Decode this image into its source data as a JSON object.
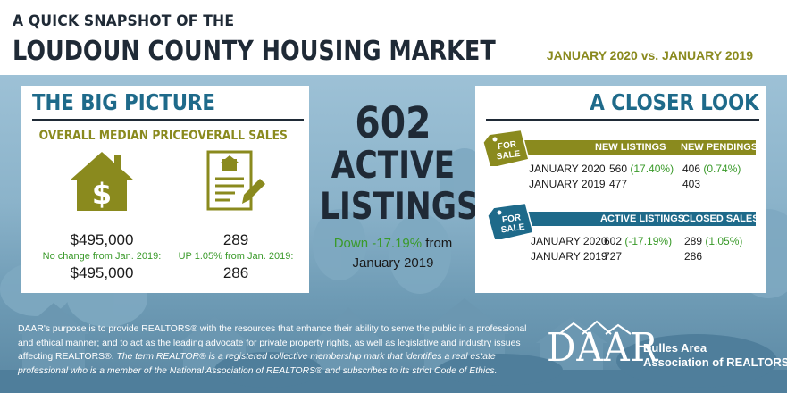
{
  "header": {
    "title_line1": "A QUICK SNAPSHOT OF THE",
    "title_line2": "LOUDOUN COUNTY HOUSING MARKET",
    "date_range": "JANUARY  2020 vs. JANUARY  2019"
  },
  "big_picture": {
    "title": "THE BIG PICTURE",
    "median_price": {
      "heading": "OVERALL MEDIAN PRICE",
      "current": "$495,000",
      "change_note": "No change from  Jan. 2019:",
      "previous": "$495,000",
      "icon": "house-dollar-icon"
    },
    "overall_sales": {
      "heading": "OVERALL SALES",
      "current": "289",
      "change_note": "UP 1.05% from  Jan. 2019:",
      "previous": "286",
      "icon": "document-pen-icon"
    }
  },
  "active_listings": {
    "number": "602",
    "label_line1": "ACTIVE",
    "label_line2": "LISTINGS",
    "change": "Down -17.19%",
    "change_suffix": " from",
    "change_period": "January 2019"
  },
  "closer_look": {
    "title": "A CLOSER LOOK",
    "tag_label": "FOR SALE",
    "tag_line1": "FOR",
    "tag_line2": "SALE",
    "table1": {
      "headers": [
        "NEW LISTINGS",
        "NEW PENDINGS"
      ],
      "rows": [
        {
          "label": "JANUARY 2020",
          "col1": "560",
          "col1_change": "(17.40%)",
          "col2": "406",
          "col2_change": "(0.74%)"
        },
        {
          "label": "JANUARY 2019",
          "col1": "477",
          "col1_change": "",
          "col2": "403",
          "col2_change": ""
        }
      ]
    },
    "table2": {
      "headers": [
        "ACTIVE LISTINGS",
        "CLOSED SALES"
      ],
      "rows": [
        {
          "label": "JANUARY 2020",
          "col1": "602",
          "col1_change": "(-17.19%)",
          "col2": "289",
          "col2_change": "(1.05%)"
        },
        {
          "label": "JANUARY 2019",
          "col1": "727",
          "col1_change": "",
          "col2": "286",
          "col2_change": ""
        }
      ]
    }
  },
  "footer": {
    "purpose": "DAAR's purpose is to provide REALTORS® with the resources that enhance their ability to serve the public in a professional and ethical manner; and to act as the leading advocate for private property rights, as well as legislative and industry issues affecting REALTORS®. ",
    "trademark": "The term REALTOR® is a registered collective membership mark that identifies a real estate professional who is a member of the National Association of REALTORS® and subscribes to its strict Code of Ethics.",
    "logo_text": "DAAR",
    "org_line1": "Dulles Area",
    "org_line2": "Association of REALTORS®"
  },
  "colors": {
    "navy": "#1f2a36",
    "teal": "#1e6a8a",
    "olive": "#8a8a1e",
    "green": "#3a9a2a"
  }
}
